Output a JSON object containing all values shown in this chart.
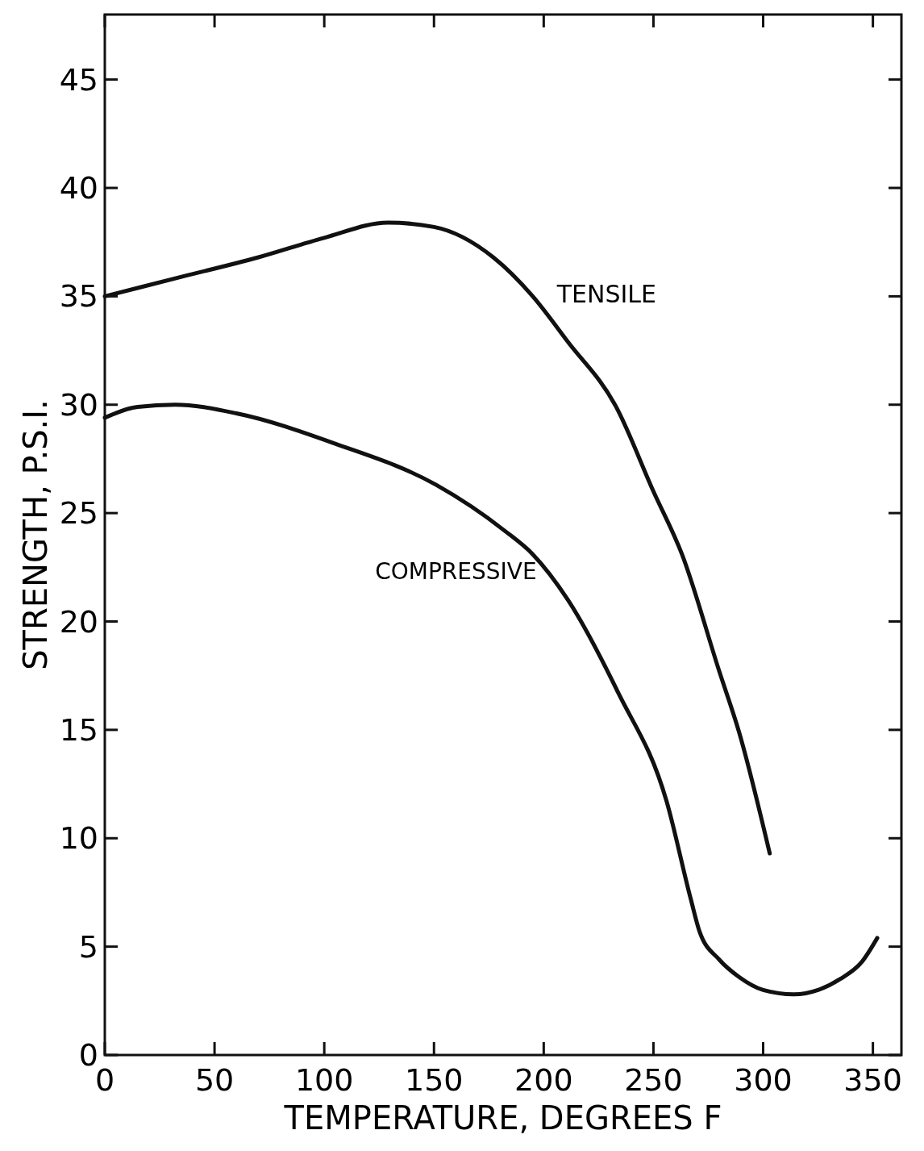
{
  "chart_data": {
    "type": "line",
    "xlabel": "TEMPERATURE, DEGREES F",
    "ylabel": "STRENGTH, P.S.I.",
    "xlim": [
      0,
      363
    ],
    "ylim": [
      0,
      48
    ],
    "xticks": [
      0,
      50,
      100,
      150,
      200,
      250,
      300,
      350
    ],
    "yticks": [
      0,
      5,
      10,
      15,
      20,
      25,
      30,
      35,
      40,
      45
    ],
    "grid": false,
    "marker": "none",
    "line_style": "solid",
    "series": [
      {
        "name": "TENSILE",
        "color": "#111111",
        "x": [
          0,
          35,
          70,
          100,
          129,
          150,
          177,
          195,
          211,
          233,
          250,
          263,
          280,
          289,
          303
        ],
        "values": [
          35,
          35.9,
          36.8,
          37.7,
          38.4,
          38.2,
          36.8,
          35,
          32.9,
          29.9,
          26,
          23.1,
          17.7,
          14.9,
          9.3
        ]
      },
      {
        "name": "COMPRESSIVE",
        "color": "#111111",
        "x": [
          0,
          15,
          32,
          60,
          105,
          151,
          182,
          195,
          211,
          234,
          256,
          267,
          271,
          280,
          289,
          300,
          314,
          325,
          335,
          345,
          352
        ],
        "values": [
          29.4,
          29.9,
          30,
          29.6,
          28.2,
          26.3,
          24.2,
          23.1,
          21,
          16.7,
          11.7,
          7.2,
          5.7,
          4.4,
          3.6,
          3,
          2.8,
          3,
          3.5,
          4.3,
          5.4
        ]
      }
    ]
  }
}
